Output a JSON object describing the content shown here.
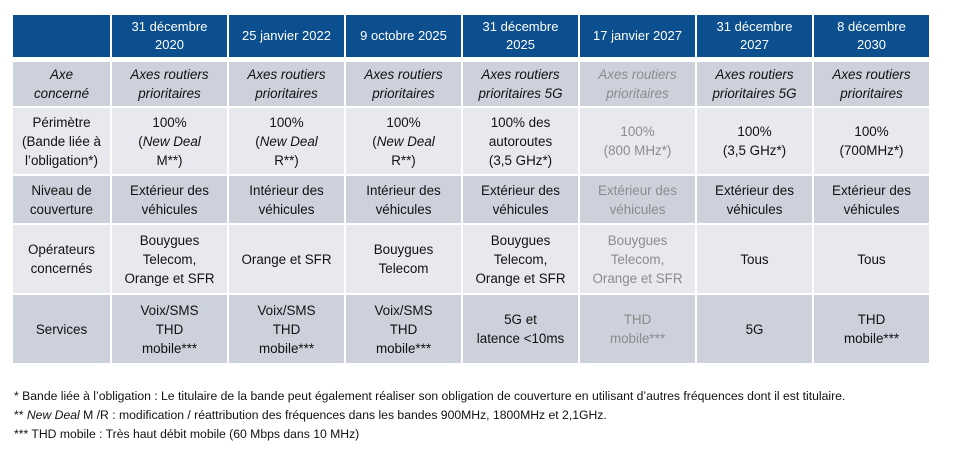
{
  "header": {
    "corner": "",
    "dates": [
      [
        "31 décembre",
        "2020"
      ],
      [
        "25 janvier 2022"
      ],
      [
        "9 octobre 2025"
      ],
      [
        "31 décembre",
        "2025"
      ],
      [
        "17 janvier 2027"
      ],
      [
        "31 décembre",
        "2027"
      ],
      [
        "8 décembre",
        "2030"
      ]
    ]
  },
  "rows": [
    {
      "label": [
        [
          {
            "text": "Axe",
            "italic": true
          }
        ],
        [
          {
            "text": "concerné",
            "italic": true
          }
        ]
      ],
      "cells": [
        {
          "grey": false,
          "lines": [
            [
              {
                "text": "Axes routiers",
                "italic": true
              }
            ],
            [
              {
                "text": "prioritaires",
                "italic": true
              }
            ]
          ]
        },
        {
          "grey": false,
          "lines": [
            [
              {
                "text": "Axes routiers",
                "italic": true
              }
            ],
            [
              {
                "text": "prioritaires",
                "italic": true
              }
            ]
          ]
        },
        {
          "grey": false,
          "lines": [
            [
              {
                "text": "Axes routiers",
                "italic": true
              }
            ],
            [
              {
                "text": "prioritaires",
                "italic": true
              }
            ]
          ]
        },
        {
          "grey": false,
          "lines": [
            [
              {
                "text": "Axes routiers",
                "italic": true
              }
            ],
            [
              {
                "text": "prioritaires 5G",
                "italic": true
              }
            ]
          ]
        },
        {
          "grey": true,
          "lines": [
            [
              {
                "text": "Axes routiers",
                "italic": true
              }
            ],
            [
              {
                "text": "prioritaires",
                "italic": true
              }
            ]
          ]
        },
        {
          "grey": false,
          "lines": [
            [
              {
                "text": "Axes routiers",
                "italic": true
              }
            ],
            [
              {
                "text": "prioritaires 5G",
                "italic": true
              }
            ]
          ]
        },
        {
          "grey": false,
          "lines": [
            [
              {
                "text": "Axes routiers",
                "italic": true
              }
            ],
            [
              {
                "text": "prioritaires",
                "italic": true
              }
            ]
          ]
        }
      ]
    },
    {
      "label": [
        [
          {
            "text": "Périmètre"
          }
        ],
        [
          {
            "text": "(Bande liée à"
          }
        ],
        [
          {
            "text": "l’obligation*)"
          }
        ]
      ],
      "cells": [
        {
          "grey": false,
          "lines": [
            [
              {
                "text": "100%"
              }
            ],
            [
              {
                "text": "("
              },
              {
                "text": "New Deal",
                "italic": true
              }
            ],
            [
              {
                "text": "M**)"
              }
            ]
          ]
        },
        {
          "grey": false,
          "lines": [
            [
              {
                "text": "100%"
              }
            ],
            [
              {
                "text": "("
              },
              {
                "text": "New Deal",
                "italic": true
              }
            ],
            [
              {
                "text": "R**)"
              }
            ]
          ]
        },
        {
          "grey": false,
          "lines": [
            [
              {
                "text": "100%"
              }
            ],
            [
              {
                "text": "("
              },
              {
                "text": "New Deal",
                "italic": true
              }
            ],
            [
              {
                "text": "R**)"
              }
            ]
          ]
        },
        {
          "grey": false,
          "lines": [
            [
              {
                "text": "100% des"
              }
            ],
            [
              {
                "text": "autoroutes"
              }
            ],
            [
              {
                "text": "(3,5 GHz*)"
              }
            ]
          ]
        },
        {
          "grey": true,
          "lines": [
            [
              {
                "text": "100%"
              }
            ],
            [
              {
                "text": "(800 MHz*)"
              }
            ]
          ]
        },
        {
          "grey": false,
          "lines": [
            [
              {
                "text": "100%"
              }
            ],
            [
              {
                "text": "(3,5 GHz*)"
              }
            ]
          ]
        },
        {
          "grey": false,
          "lines": [
            [
              {
                "text": "100%"
              }
            ],
            [
              {
                "text": "(700MHz*)"
              }
            ]
          ]
        }
      ]
    },
    {
      "label": [
        [
          {
            "text": "Niveau de"
          }
        ],
        [
          {
            "text": "couverture"
          }
        ]
      ],
      "cells": [
        {
          "grey": false,
          "lines": [
            [
              {
                "text": "Extérieur des"
              }
            ],
            [
              {
                "text": "véhicules"
              }
            ]
          ]
        },
        {
          "grey": false,
          "lines": [
            [
              {
                "text": "Intérieur des"
              }
            ],
            [
              {
                "text": "véhicules"
              }
            ]
          ]
        },
        {
          "grey": false,
          "lines": [
            [
              {
                "text": "Intérieur des"
              }
            ],
            [
              {
                "text": "véhicules"
              }
            ]
          ]
        },
        {
          "grey": false,
          "lines": [
            [
              {
                "text": "Extérieur des"
              }
            ],
            [
              {
                "text": "véhicules"
              }
            ]
          ]
        },
        {
          "grey": true,
          "lines": [
            [
              {
                "text": "Extérieur des"
              }
            ],
            [
              {
                "text": "véhicules"
              }
            ]
          ]
        },
        {
          "grey": false,
          "lines": [
            [
              {
                "text": "Extérieur des"
              }
            ],
            [
              {
                "text": "véhicules"
              }
            ]
          ]
        },
        {
          "grey": false,
          "lines": [
            [
              {
                "text": "Extérieur des"
              }
            ],
            [
              {
                "text": "véhicules"
              }
            ]
          ]
        }
      ]
    },
    {
      "label": [
        [
          {
            "text": "Opérateurs"
          }
        ],
        [
          {
            "text": "concernés"
          }
        ]
      ],
      "cells": [
        {
          "grey": false,
          "lines": [
            [
              {
                "text": "Bouygues"
              }
            ],
            [
              {
                "text": "Telecom,"
              }
            ],
            [
              {
                "text": "Orange et SFR"
              }
            ]
          ]
        },
        {
          "grey": false,
          "lines": [
            [
              {
                "text": "Orange et SFR"
              }
            ]
          ]
        },
        {
          "grey": false,
          "lines": [
            [
              {
                "text": "Bouygues"
              }
            ],
            [
              {
                "text": "Telecom"
              }
            ]
          ]
        },
        {
          "grey": false,
          "lines": [
            [
              {
                "text": "Bouygues"
              }
            ],
            [
              {
                "text": "Telecom,"
              }
            ],
            [
              {
                "text": "Orange et SFR"
              }
            ]
          ]
        },
        {
          "grey": true,
          "lines": [
            [
              {
                "text": "Bouygues"
              }
            ],
            [
              {
                "text": "Telecom,"
              }
            ],
            [
              {
                "text": "Orange et SFR"
              }
            ]
          ]
        },
        {
          "grey": false,
          "lines": [
            [
              {
                "text": "Tous"
              }
            ]
          ]
        },
        {
          "grey": false,
          "lines": [
            [
              {
                "text": "Tous"
              }
            ]
          ]
        }
      ]
    },
    {
      "label": [
        [
          {
            "text": "Services"
          }
        ]
      ],
      "cells": [
        {
          "grey": false,
          "lines": [
            [
              {
                "text": "Voix/SMS"
              }
            ],
            [
              {
                "text": "THD"
              }
            ],
            [
              {
                "text": "mobile***"
              }
            ]
          ]
        },
        {
          "grey": false,
          "lines": [
            [
              {
                "text": "Voix/SMS"
              }
            ],
            [
              {
                "text": "THD"
              }
            ],
            [
              {
                "text": "mobile***"
              }
            ]
          ]
        },
        {
          "grey": false,
          "lines": [
            [
              {
                "text": "Voix/SMS"
              }
            ],
            [
              {
                "text": "THD"
              }
            ],
            [
              {
                "text": "mobile***"
              }
            ]
          ]
        },
        {
          "grey": false,
          "lines": [
            [
              {
                "text": "5G et"
              }
            ],
            [
              {
                "text": "latence <10ms"
              }
            ]
          ]
        },
        {
          "grey": true,
          "lines": [
            [
              {
                "text": "THD"
              }
            ],
            [
              {
                "text": "mobile***"
              }
            ]
          ]
        },
        {
          "grey": false,
          "lines": [
            [
              {
                "text": "5G"
              }
            ]
          ]
        },
        {
          "grey": false,
          "lines": [
            [
              {
                "text": "THD"
              }
            ],
            [
              {
                "text": "mobile***"
              }
            ]
          ]
        }
      ]
    }
  ],
  "notes": [
    [
      {
        "text": "* Bande liée à l’obligation : Le titulaire de la bande peut également réaliser son obligation de couverture en utilisant d’autres fréquences dont il est titulaire."
      }
    ],
    [
      {
        "text": "** "
      },
      {
        "text": "New Deal",
        "italic": true
      },
      {
        "text": " M /R : modification / réattribution des fréquences dans les bandes 900MHz, 1800MHz et 2,1GHz."
      }
    ],
    [
      {
        "text": "*** THD mobile : Très haut débit mobile (60 Mbps dans 10 MHz)"
      }
    ]
  ],
  "colors": {
    "header_bg": "#0B4F8F",
    "row_dark": "#CDD1DC",
    "row_light": "#E8E9EE",
    "grey_text": "#8C8C8C"
  }
}
